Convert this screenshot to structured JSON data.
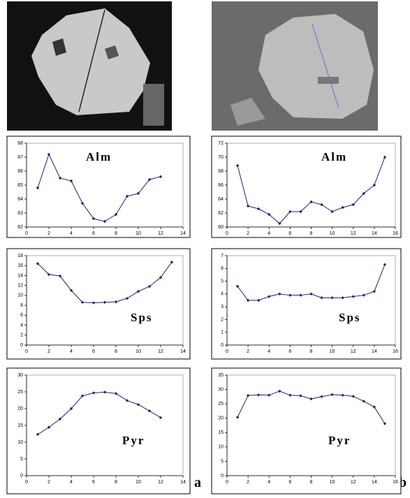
{
  "panel_labels": [
    "a",
    "b"
  ],
  "chart_data": [
    {
      "type": "line",
      "title": "Alm",
      "color": "#1f1f7a",
      "x": [
        1,
        2,
        3,
        4,
        5,
        6,
        7,
        8,
        9,
        10,
        11,
        12
      ],
      "values": [
        64.8,
        67.2,
        65.5,
        65.3,
        63.7,
        62.6,
        62.4,
        62.9,
        64.2,
        64.4,
        65.4,
        65.6
      ],
      "xlim": [
        0,
        14
      ],
      "xticks": [
        0,
        2,
        4,
        6,
        8,
        10,
        12,
        14
      ],
      "ylim": [
        62,
        68
      ],
      "yticks": [
        62,
        63,
        64,
        65,
        66,
        67,
        68
      ]
    },
    {
      "type": "line",
      "title": "Alm",
      "color": "#1f1f7a",
      "x": [
        1,
        2,
        3,
        4,
        5,
        6,
        7,
        8,
        9,
        10,
        11,
        12,
        13,
        14,
        15
      ],
      "values": [
        68.8,
        63.0,
        62.6,
        61.8,
        60.5,
        62.2,
        62.2,
        63.6,
        63.2,
        62.2,
        62.8,
        63.2,
        64.8,
        66.0,
        70.0
      ],
      "xlim": [
        0,
        16
      ],
      "xticks": [
        0,
        2,
        4,
        6,
        8,
        10,
        12,
        14,
        16
      ],
      "ylim": [
        60,
        72
      ],
      "yticks": [
        60,
        62,
        64,
        66,
        68,
        70,
        72
      ]
    },
    {
      "type": "line",
      "title": "Sps",
      "color": "#1f1f7a",
      "x": [
        1,
        2,
        3,
        4,
        5,
        6,
        7,
        8,
        9,
        10,
        11,
        12,
        13
      ],
      "values": [
        16.4,
        14.2,
        13.9,
        11.0,
        8.6,
        8.5,
        8.6,
        8.7,
        9.4,
        10.8,
        11.8,
        13.6,
        16.7
      ],
      "xlim": [
        0,
        14
      ],
      "xticks": [
        0,
        2,
        4,
        6,
        8,
        10,
        12,
        14
      ],
      "ylim": [
        0,
        18
      ],
      "yticks": [
        0,
        2,
        4,
        6,
        8,
        10,
        12,
        14,
        16,
        18
      ]
    },
    {
      "type": "line",
      "title": "Sps",
      "color": "#1f1f7a",
      "x": [
        1,
        2,
        3,
        4,
        5,
        6,
        7,
        8,
        9,
        10,
        11,
        12,
        13,
        14,
        15
      ],
      "values": [
        4.6,
        3.5,
        3.5,
        3.8,
        4.0,
        3.9,
        3.9,
        4.0,
        3.7,
        3.7,
        3.7,
        3.8,
        3.9,
        4.2,
        6.3
      ],
      "xlim": [
        0,
        16
      ],
      "xticks": [
        0,
        2,
        4,
        6,
        8,
        10,
        12,
        14,
        16
      ],
      "ylim": [
        0,
        7
      ],
      "yticks": [
        0,
        1,
        2,
        3,
        4,
        5,
        6,
        7
      ]
    },
    {
      "type": "line",
      "title": "Pyr",
      "color": "#1f1f7a",
      "x": [
        1,
        2,
        3,
        4,
        5,
        6,
        7,
        8,
        9,
        10,
        11,
        12
      ],
      "values": [
        12.3,
        14.4,
        16.9,
        20.0,
        23.8,
        24.7,
        24.9,
        24.5,
        22.4,
        21.2,
        19.3,
        17.3
      ],
      "xlim": [
        0,
        14
      ],
      "xticks": [
        0,
        2,
        4,
        6,
        8,
        10,
        12,
        14
      ],
      "ylim": [
        0,
        30
      ],
      "yticks": [
        0,
        5,
        10,
        15,
        20,
        25,
        30
      ]
    },
    {
      "type": "line",
      "title": "Pyr",
      "color": "#1f1f7a",
      "x": [
        1,
        2,
        3,
        4,
        5,
        6,
        7,
        8,
        9,
        10,
        11,
        12,
        13,
        14,
        15
      ],
      "values": [
        20.3,
        27.9,
        28.1,
        28.0,
        29.4,
        28.0,
        27.8,
        26.7,
        27.5,
        28.2,
        28.0,
        27.6,
        25.9,
        23.9,
        18.1
      ],
      "xlim": [
        0,
        16
      ],
      "xticks": [
        0,
        2,
        4,
        6,
        8,
        10,
        12,
        14,
        16
      ],
      "ylim": [
        0,
        35
      ],
      "yticks": [
        0,
        5,
        10,
        15,
        20,
        25,
        30,
        35
      ]
    }
  ]
}
